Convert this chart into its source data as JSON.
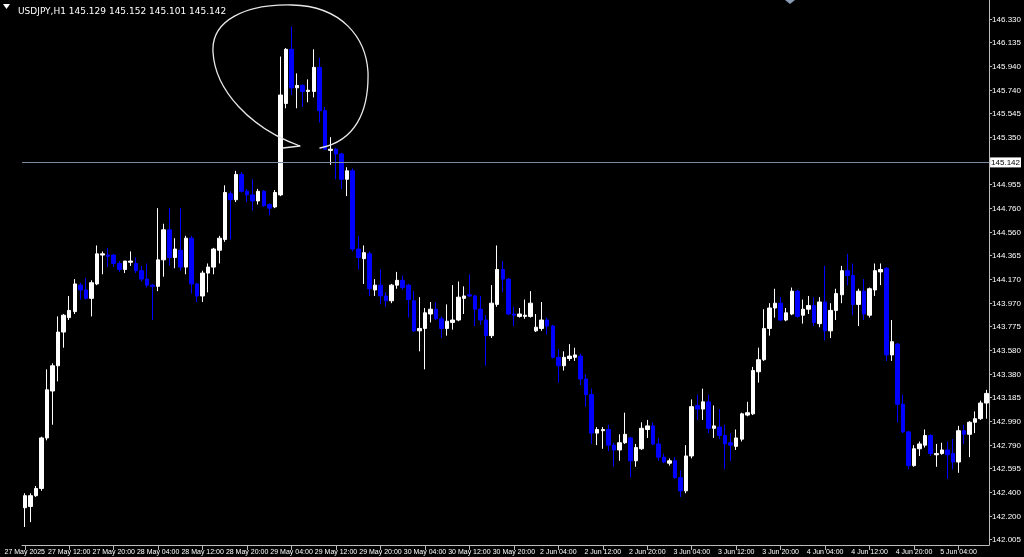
{
  "chart_data": {
    "type": "candlestick",
    "title": "USDJPY,H1 145.129 145.152 145.101 145.142",
    "categories": [
      "27 May 2025",
      null,
      null,
      null,
      null,
      null,
      null,
      null,
      "27 May 12:00",
      null,
      null,
      null,
      null,
      null,
      null,
      null,
      "27 May 20:00",
      null,
      null,
      null,
      null,
      null,
      null,
      null,
      "28 May 04:00",
      null,
      null,
      null,
      null,
      null,
      null,
      null,
      "28 May 12:00",
      null,
      null,
      null,
      null,
      null,
      null,
      null,
      "28 May 20:00",
      null,
      null,
      null,
      null,
      null,
      null,
      null,
      "29 May 04:00",
      null,
      null,
      null,
      null,
      null,
      null,
      null,
      "29 May 12:00",
      null,
      null,
      null,
      null,
      null,
      null,
      null,
      "29 May 20:00",
      null,
      null,
      null,
      null,
      null,
      null,
      null,
      "30 May 04:00",
      null,
      null,
      null,
      null,
      null,
      null,
      null,
      "30 May 12:00",
      null,
      null,
      null,
      null,
      null,
      null,
      null,
      "30 May 20:00",
      null,
      null,
      null,
      null,
      null,
      null,
      null,
      "2 Jun 04:00",
      null,
      null,
      null,
      null,
      null,
      null,
      null,
      "2 Jun 12:00",
      null,
      null,
      null,
      null,
      null,
      null,
      null,
      "2 Jun 20:00",
      null,
      null,
      null,
      null,
      null,
      null,
      null,
      "3 Jun 04:00",
      null,
      null,
      null,
      null,
      null,
      null,
      null,
      "3 Jun 12:00",
      null,
      null,
      null,
      null,
      null,
      null,
      null,
      "3 Jun 20:00",
      null,
      null,
      null,
      null,
      null,
      null,
      null,
      "4 Jun 04:00",
      null,
      null,
      null,
      null,
      null,
      null,
      null,
      "4 Jun 12:00",
      null,
      null,
      null,
      null,
      null,
      null,
      null,
      "4 Jun 20:00",
      null,
      null,
      null,
      null,
      null,
      null,
      null,
      "5 Jun 04:00",
      null,
      null,
      null,
      null,
      null
    ],
    "ohlc": [
      [
        142.27,
        142.39,
        142.11,
        142.37
      ],
      [
        142.28,
        142.39,
        142.15,
        142.37
      ],
      [
        142.37,
        142.45,
        142.36,
        142.43
      ],
      [
        142.43,
        142.86,
        142.41,
        142.85
      ],
      [
        142.85,
        143.42,
        142.83,
        143.25
      ],
      [
        143.24,
        143.47,
        142.96,
        143.45
      ],
      [
        143.45,
        143.86,
        143.32,
        143.73
      ],
      [
        143.73,
        143.88,
        143.6,
        143.87
      ],
      [
        143.85,
        144.03,
        143.83,
        143.91
      ],
      [
        143.9,
        144.17,
        143.88,
        144.13
      ],
      [
        144.12,
        144.14,
        144.0,
        144.08
      ],
      [
        144.08,
        144.18,
        144.0,
        144.01
      ],
      [
        144.01,
        144.16,
        143.86,
        144.14
      ],
      [
        144.13,
        144.45,
        144.12,
        144.38
      ],
      [
        144.37,
        144.4,
        144.21,
        144.38
      ],
      [
        144.37,
        144.43,
        144.27,
        144.36
      ],
      [
        144.37,
        144.38,
        144.27,
        144.3
      ],
      [
        144.3,
        144.32,
        144.23,
        144.25
      ],
      [
        144.25,
        144.32,
        144.22,
        144.32
      ],
      [
        144.31,
        144.4,
        144.28,
        144.32
      ],
      [
        144.3,
        144.35,
        144.22,
        144.24
      ],
      [
        144.24,
        144.28,
        144.15,
        144.17
      ],
      [
        144.17,
        144.3,
        144.1,
        144.12
      ],
      [
        144.12,
        144.13,
        143.83,
        144.11
      ],
      [
        144.11,
        144.76,
        144.07,
        144.33
      ],
      [
        144.33,
        144.63,
        144.19,
        144.58
      ],
      [
        144.58,
        144.76,
        144.28,
        144.35
      ],
      [
        144.35,
        144.51,
        144.26,
        144.42
      ],
      [
        144.41,
        144.76,
        144.24,
        144.27
      ],
      [
        144.27,
        144.53,
        144.21,
        144.51
      ],
      [
        144.51,
        144.53,
        144.05,
        144.13
      ],
      [
        144.13,
        144.14,
        143.98,
        144.03
      ],
      [
        144.03,
        144.24,
        143.98,
        144.22
      ],
      [
        144.22,
        144.3,
        144.06,
        144.27
      ],
      [
        144.27,
        144.43,
        144.21,
        144.42
      ],
      [
        144.41,
        144.53,
        144.3,
        144.51
      ],
      [
        144.5,
        144.95,
        144.48,
        144.89
      ],
      [
        144.88,
        144.9,
        144.5,
        144.83
      ],
      [
        144.83,
        145.07,
        144.81,
        145.04
      ],
      [
        145.04,
        145.06,
        144.89,
        144.9
      ],
      [
        144.9,
        144.92,
        144.81,
        144.87
      ],
      [
        144.87,
        145.0,
        144.74,
        144.82
      ],
      [
        144.82,
        144.92,
        144.79,
        144.9
      ],
      [
        144.9,
        144.91,
        144.77,
        144.78
      ],
      [
        144.79,
        144.8,
        144.7,
        144.76
      ],
      [
        144.77,
        144.91,
        144.76,
        144.89
      ],
      [
        144.87,
        146.02,
        144.86,
        145.7
      ],
      [
        145.63,
        146.09,
        145.59,
        146.08
      ],
      [
        146.08,
        146.27,
        145.7,
        145.76
      ],
      [
        145.76,
        145.88,
        145.59,
        145.78
      ],
      [
        145.78,
        145.79,
        145.6,
        145.73
      ],
      [
        145.73,
        145.83,
        145.64,
        145.74
      ],
      [
        145.73,
        146.08,
        145.68,
        145.93
      ],
      [
        145.93,
        146.01,
        145.47,
        145.57
      ],
      [
        145.57,
        145.6,
        145.25,
        145.25
      ],
      [
        145.24,
        145.35,
        145.12,
        145.25
      ],
      [
        145.25,
        145.26,
        145.0,
        145.21
      ],
      [
        145.21,
        145.22,
        144.92,
        145.0
      ],
      [
        145.0,
        145.1,
        144.86,
        145.07
      ],
      [
        145.07,
        145.09,
        144.4,
        144.42
      ],
      [
        144.42,
        144.53,
        144.25,
        144.35
      ],
      [
        144.34,
        144.45,
        144.13,
        144.39
      ],
      [
        144.38,
        144.4,
        144.03,
        144.09
      ],
      [
        144.08,
        144.17,
        144.03,
        144.12
      ],
      [
        144.12,
        144.25,
        143.96,
        144.03
      ],
      [
        144.03,
        144.06,
        143.94,
        143.99
      ],
      [
        143.99,
        144.13,
        143.97,
        144.12
      ],
      [
        144.12,
        144.23,
        144.09,
        144.16
      ],
      [
        144.16,
        144.2,
        144.08,
        144.1
      ],
      [
        144.12,
        144.13,
        143.85,
        144.0
      ],
      [
        143.99,
        144.07,
        143.73,
        143.74
      ],
      [
        143.74,
        144.02,
        143.57,
        143.76
      ],
      [
        143.76,
        143.93,
        143.42,
        143.89
      ],
      [
        143.88,
        143.98,
        143.81,
        143.92
      ],
      [
        143.92,
        143.98,
        143.83,
        143.84
      ],
      [
        143.84,
        143.86,
        143.68,
        143.76
      ],
      [
        143.76,
        143.96,
        143.7,
        143.82
      ],
      [
        143.81,
        144.12,
        143.75,
        143.83
      ],
      [
        143.83,
        144.15,
        143.82,
        144.02
      ],
      [
        144.01,
        144.11,
        143.88,
        144.03
      ],
      [
        144.04,
        144.21,
        144.02,
        144.03
      ],
      [
        144.03,
        144.04,
        143.78,
        143.92
      ],
      [
        143.92,
        144.03,
        143.79,
        143.83
      ],
      [
        143.83,
        143.87,
        143.45,
        143.7
      ],
      [
        143.7,
        144.12,
        143.68,
        143.97
      ],
      [
        143.96,
        144.45,
        143.94,
        144.25
      ],
      [
        144.25,
        144.32,
        144.06,
        144.17
      ],
      [
        144.17,
        144.18,
        143.87,
        143.88
      ],
      [
        143.88,
        143.94,
        143.78,
        143.87
      ],
      [
        143.86,
        143.93,
        143.85,
        143.88
      ],
      [
        143.86,
        144.0,
        143.84,
        143.87
      ],
      [
        143.86,
        144.07,
        143.85,
        143.97
      ],
      [
        143.74,
        143.88,
        143.73,
        143.77
      ],
      [
        143.76,
        143.98,
        143.74,
        143.83
      ],
      [
        143.83,
        143.85,
        143.71,
        143.78
      ],
      [
        143.78,
        143.79,
        143.51,
        143.52
      ],
      [
        143.52,
        143.59,
        143.31,
        143.45
      ],
      [
        143.45,
        143.57,
        143.41,
        143.52
      ],
      [
        143.51,
        143.63,
        143.49,
        143.53
      ],
      [
        143.52,
        143.6,
        143.49,
        143.54
      ],
      [
        143.53,
        143.55,
        143.29,
        143.34
      ],
      [
        143.34,
        143.38,
        143.11,
        143.21
      ],
      [
        143.21,
        143.26,
        142.8,
        142.89
      ],
      [
        142.89,
        142.94,
        142.79,
        142.92
      ],
      [
        142.91,
        142.94,
        142.76,
        142.92
      ],
      [
        142.92,
        142.96,
        142.74,
        142.79
      ],
      [
        142.79,
        142.81,
        142.61,
        142.75
      ],
      [
        142.75,
        142.88,
        142.66,
        142.81
      ],
      [
        142.81,
        143.06,
        142.8,
        142.88
      ],
      [
        142.85,
        142.86,
        142.52,
        142.66
      ],
      [
        142.66,
        142.8,
        142.61,
        142.77
      ],
      [
        142.76,
        142.98,
        142.75,
        142.93
      ],
      [
        142.92,
        143.0,
        142.85,
        142.95
      ],
      [
        142.95,
        142.98,
        142.79,
        142.8
      ],
      [
        142.8,
        142.85,
        142.66,
        142.69
      ],
      [
        142.69,
        142.72,
        142.64,
        142.65
      ],
      [
        142.64,
        142.68,
        142.62,
        142.66
      ],
      [
        142.66,
        142.69,
        142.51,
        142.52
      ],
      [
        142.52,
        142.58,
        142.36,
        142.41
      ],
      [
        142.41,
        142.79,
        142.39,
        142.7
      ],
      [
        142.7,
        143.17,
        142.68,
        143.11
      ],
      [
        143.12,
        143.21,
        143.0,
        143.09
      ],
      [
        143.09,
        143.26,
        143.0,
        143.15
      ],
      [
        143.15,
        143.21,
        142.89,
        142.93
      ],
      [
        142.93,
        143.12,
        142.85,
        142.95
      ],
      [
        142.94,
        143.09,
        142.84,
        142.87
      ],
      [
        142.87,
        142.96,
        142.59,
        142.8
      ],
      [
        142.81,
        142.89,
        142.66,
        142.79
      ],
      [
        142.78,
        142.92,
        142.75,
        142.85
      ],
      [
        142.84,
        143.06,
        142.82,
        143.05
      ],
      [
        143.04,
        143.15,
        143.03,
        143.06
      ],
      [
        143.05,
        143.44,
        143.04,
        143.41
      ],
      [
        143.4,
        143.6,
        143.31,
        143.5
      ],
      [
        143.5,
        143.92,
        143.49,
        143.76
      ],
      [
        143.76,
        143.97,
        143.7,
        143.93
      ],
      [
        143.93,
        144.09,
        143.85,
        143.97
      ],
      [
        143.97,
        144.02,
        143.82,
        143.83
      ],
      [
        143.83,
        143.93,
        143.82,
        143.89
      ],
      [
        143.88,
        144.1,
        143.87,
        144.07
      ],
      [
        144.07,
        144.08,
        143.85,
        143.86
      ],
      [
        143.87,
        144.0,
        143.8,
        143.92
      ],
      [
        143.92,
        144.03,
        143.88,
        143.95
      ],
      [
        143.95,
        144.02,
        143.78,
        143.81
      ],
      [
        143.8,
        144.02,
        143.77,
        143.98
      ],
      [
        143.98,
        144.28,
        143.66,
        143.74
      ],
      [
        143.74,
        143.97,
        143.68,
        143.91
      ],
      [
        143.91,
        144.09,
        143.83,
        144.05
      ],
      [
        144.04,
        144.28,
        143.97,
        144.24
      ],
      [
        144.24,
        144.38,
        144.12,
        144.2
      ],
      [
        144.2,
        144.3,
        143.87,
        143.96
      ],
      [
        143.96,
        144.09,
        143.78,
        144.07
      ],
      [
        144.07,
        144.17,
        143.83,
        143.88
      ],
      [
        143.87,
        144.1,
        143.85,
        144.09
      ],
      [
        144.08,
        144.3,
        144.03,
        144.24
      ],
      [
        144.23,
        144.3,
        144.12,
        144.25
      ],
      [
        144.26,
        144.27,
        143.49,
        143.54
      ],
      [
        143.54,
        143.83,
        143.49,
        143.65
      ],
      [
        143.63,
        143.64,
        142.98,
        143.13
      ],
      [
        143.13,
        143.21,
        142.89,
        142.9
      ],
      [
        142.9,
        142.91,
        142.59,
        142.62
      ],
      [
        142.62,
        142.79,
        142.61,
        142.76
      ],
      [
        142.76,
        142.82,
        142.7,
        142.8
      ],
      [
        142.79,
        142.92,
        142.77,
        142.87
      ],
      [
        142.87,
        142.88,
        142.7,
        142.72
      ],
      [
        142.71,
        142.8,
        142.61,
        142.72
      ],
      [
        142.72,
        142.81,
        142.71,
        142.75
      ],
      [
        142.75,
        142.82,
        142.51,
        142.71
      ],
      [
        142.72,
        142.84,
        142.59,
        142.65
      ],
      [
        142.65,
        142.95,
        142.56,
        142.91
      ],
      [
        142.91,
        142.96,
        142.8,
        142.88
      ],
      [
        142.88,
        142.99,
        142.69,
        142.98
      ],
      [
        142.98,
        143.07,
        142.89,
        143.01
      ],
      [
        143.01,
        143.16,
        143.0,
        143.14
      ],
      [
        143.14,
        143.25,
        143.01,
        143.22
      ]
    ],
    "colors": [
      "#ffffff",
      "#ffffff",
      "#ffffff",
      "#ffffff",
      "#ffffff",
      "#ffffff",
      "#ffffff",
      "#ffffff",
      "#ffffff",
      "#ffffff",
      "#0000ff",
      "#0000ff",
      "#ffffff",
      "#ffffff",
      "#ffffff",
      "#0000ff",
      "#0000ff",
      "#0000ff",
      "#ffffff",
      "#ffffff",
      "#0000ff",
      "#0000ff",
      "#0000ff",
      "#0000ff",
      "#ffffff",
      "#ffffff",
      "#0000ff",
      "#ffffff",
      "#0000ff",
      "#ffffff",
      "#0000ff",
      "#0000ff",
      "#ffffff",
      "#ffffff",
      "#ffffff",
      "#ffffff",
      "#ffffff",
      "#0000ff",
      "#ffffff",
      "#0000ff",
      "#0000ff",
      "#0000ff",
      "#ffffff",
      "#0000ff",
      "#0000ff",
      "#ffffff",
      "#ffffff",
      "#ffffff",
      "#0000ff",
      "#ffffff",
      "#0000ff",
      "#ffffff",
      "#ffffff",
      "#0000ff",
      "#0000ff",
      "#ffffff",
      "#0000ff",
      "#0000ff",
      "#ffffff",
      "#0000ff",
      "#0000ff",
      "#ffffff",
      "#0000ff",
      "#ffffff",
      "#0000ff",
      "#0000ff",
      "#ffffff",
      "#ffffff",
      "#0000ff",
      "#0000ff",
      "#0000ff",
      "#ffffff",
      "#ffffff",
      "#ffffff",
      "#0000ff",
      "#0000ff",
      "#ffffff",
      "#ffffff",
      "#ffffff",
      "#ffffff",
      "#0000ff",
      "#0000ff",
      "#0000ff",
      "#0000ff",
      "#ffffff",
      "#ffffff",
      "#0000ff",
      "#0000ff",
      "#0000ff",
      "#ffffff",
      "#ffffff",
      "#ffffff",
      "#ffffff",
      "#ffffff",
      "#0000ff",
      "#0000ff",
      "#0000ff",
      "#ffffff",
      "#ffffff",
      "#ffffff",
      "#0000ff",
      "#0000ff",
      "#0000ff",
      "#ffffff",
      "#ffffff",
      "#0000ff",
      "#0000ff",
      "#ffffff",
      "#ffffff",
      "#0000ff",
      "#ffffff",
      "#ffffff",
      "#ffffff",
      "#0000ff",
      "#0000ff",
      "#0000ff",
      "#ffffff",
      "#0000ff",
      "#0000ff",
      "#ffffff",
      "#ffffff",
      "#0000ff",
      "#ffffff",
      "#0000ff",
      "#ffffff",
      "#0000ff",
      "#0000ff",
      "#0000ff",
      "#ffffff",
      "#ffffff",
      "#ffffff",
      "#ffffff",
      "#ffffff",
      "#ffffff",
      "#ffffff",
      "#ffffff",
      "#0000ff",
      "#ffffff",
      "#ffffff",
      "#0000ff",
      "#ffffff",
      "#ffffff",
      "#0000ff",
      "#ffffff",
      "#0000ff",
      "#ffffff",
      "#ffffff",
      "#ffffff",
      "#0000ff",
      "#0000ff",
      "#ffffff",
      "#0000ff",
      "#ffffff",
      "#ffffff",
      "#ffffff",
      "#0000ff",
      "#ffffff",
      "#0000ff",
      "#0000ff",
      "#0000ff",
      "#ffffff",
      "#ffffff",
      "#ffffff",
      "#0000ff",
      "#ffffff",
      "#ffffff",
      "#0000ff",
      "#0000ff",
      "#ffffff",
      "#0000ff",
      "#ffffff",
      "#ffffff",
      "#ffffff",
      "#ffffff"
    ],
    "ylim": [
      141.96,
      146.49
    ],
    "yticks": [
      {
        "value": 146.33,
        "label": "146.330"
      },
      146.135,
      {
        "value": 145.94,
        "label": "145.940"
      },
      {
        "value": 145.74,
        "label": "145.740"
      },
      145.545,
      {
        "value": 145.35,
        "label": "145.350"
      },
      144.955,
      {
        "value": 144.76,
        "label": "144.760"
      },
      {
        "value": 144.56,
        "label": "144.560"
      },
      144.365,
      {
        "value": 144.17,
        "label": "144.170"
      },
      {
        "value": 143.97,
        "label": "143.970"
      },
      143.775,
      {
        "value": 143.58,
        "label": "143.580"
      },
      {
        "value": 143.38,
        "label": "143.380"
      },
      143.185,
      {
        "value": 142.99,
        "label": "142.990"
      },
      {
        "value": 142.79,
        "label": "142.790"
      },
      142.595,
      {
        "value": 142.4,
        "label": "142.400"
      },
      {
        "value": 142.2,
        "label": "142.200"
      },
      142.005
    ],
    "ref_lines": [
      {
        "axis": "y",
        "value": 145.142,
        "label": "145.142",
        "color": "#7b8ba3"
      }
    ]
  }
}
